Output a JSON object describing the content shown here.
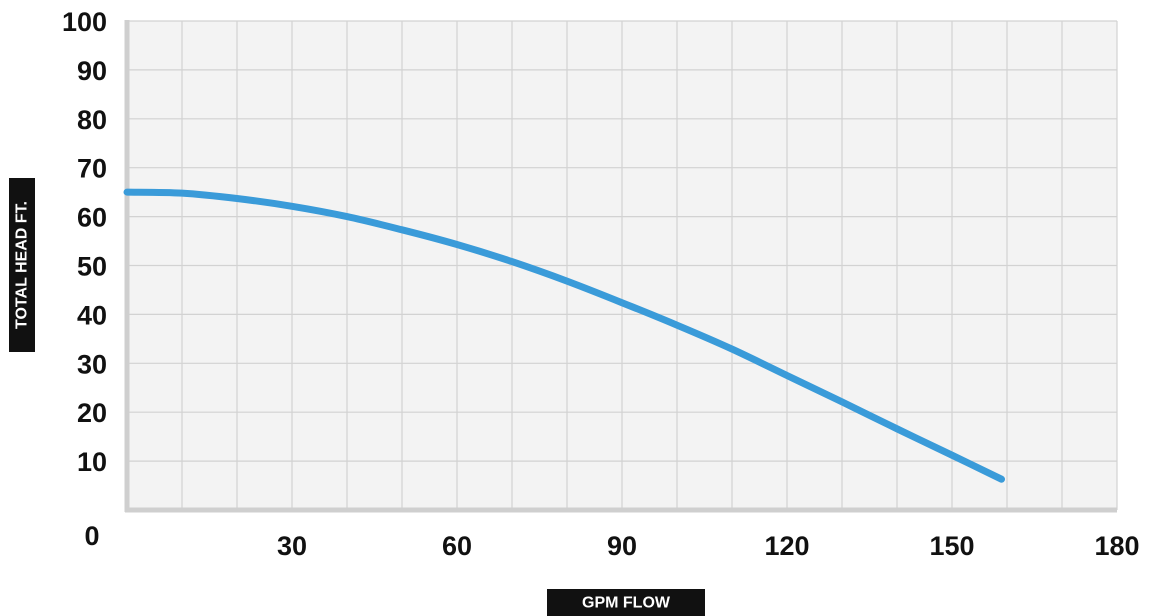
{
  "chart_data": {
    "type": "line",
    "xlabel": "GPM FLOW",
    "ylabel": "TOTAL HEAD FT.",
    "xlim": [
      0,
      180
    ],
    "ylim": [
      0,
      100
    ],
    "x_ticks": [
      30,
      60,
      90,
      120,
      150,
      180
    ],
    "y_ticks": [
      100,
      90,
      80,
      70,
      60,
      50,
      40,
      30,
      20,
      10
    ],
    "origin_label": "0",
    "grid": true,
    "x_minor_step": 10,
    "y_minor_step": 10,
    "series": [
      {
        "color": "#3a9bd9",
        "x": [
          0,
          10,
          20,
          30,
          40,
          50,
          60,
          70,
          80,
          90,
          100,
          110,
          120,
          130,
          140,
          150,
          159
        ],
        "y": [
          65,
          64.8,
          63.7,
          62.1,
          60,
          57.3,
          54.3,
          50.8,
          46.8,
          42.4,
          37.8,
          32.9,
          27.5,
          22.1,
          16.6,
          11.2,
          6.3
        ]
      }
    ]
  },
  "colors": {
    "plot_background": "#f3f3f3",
    "grid": "#d2d2d2",
    "axis": "#cfcfcf",
    "badge": "#111111"
  }
}
